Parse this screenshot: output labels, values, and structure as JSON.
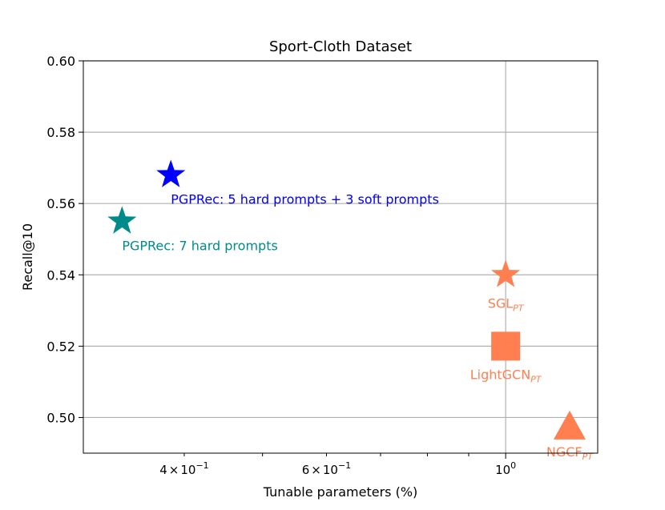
{
  "chart_data": {
    "type": "scatter",
    "title": "Sport-Cloth Dataset",
    "xlabel": "Tunable parameters (%)",
    "ylabel": "Recall@10",
    "x_scale": "log",
    "xlim": [
      0.3,
      1.3
    ],
    "ylim": [
      0.49,
      0.6
    ],
    "x_major_ticks": [
      {
        "value": 1.0,
        "base": "10",
        "exp": "0"
      }
    ],
    "x_minor_ticks": [
      {
        "value": 0.4,
        "mantissa": "4",
        "base": "10",
        "exp": "−1"
      },
      {
        "value": 0.6,
        "mantissa": "6",
        "base": "10",
        "exp": "−1"
      }
    ],
    "x_unlabeled_minor_ticks": [
      0.5,
      0.7,
      0.8,
      0.9
    ],
    "y_ticks": [
      "0.50",
      "0.52",
      "0.54",
      "0.56",
      "0.58",
      "0.60"
    ],
    "grid": true,
    "points": [
      {
        "label_main": "PGPRec: 5 hard prompts + 3 soft prompts",
        "label_sub": "",
        "x": 0.385,
        "y": 0.568,
        "marker": "star",
        "color": "#0000ff",
        "label_pos": "below-right"
      },
      {
        "label_main": "PGPRec: 7 hard prompts",
        "label_sub": "",
        "x": 0.335,
        "y": 0.555,
        "marker": "star",
        "color": "#008b8b",
        "label_pos": "below-right"
      },
      {
        "label_main": "SGL",
        "label_sub": "PT",
        "x": 1.0,
        "y": 0.54,
        "marker": "star",
        "color": "#ff7f50",
        "label_pos": "below"
      },
      {
        "label_main": "LightGCN",
        "label_sub": "PT",
        "x": 1.0,
        "y": 0.52,
        "marker": "square",
        "color": "#ff7f50",
        "label_pos": "below"
      },
      {
        "label_main": "NGCF",
        "label_sub": "PT",
        "x": 1.2,
        "y": 0.497,
        "marker": "triangle",
        "color": "#ff7f50",
        "label_pos": "below"
      }
    ]
  }
}
